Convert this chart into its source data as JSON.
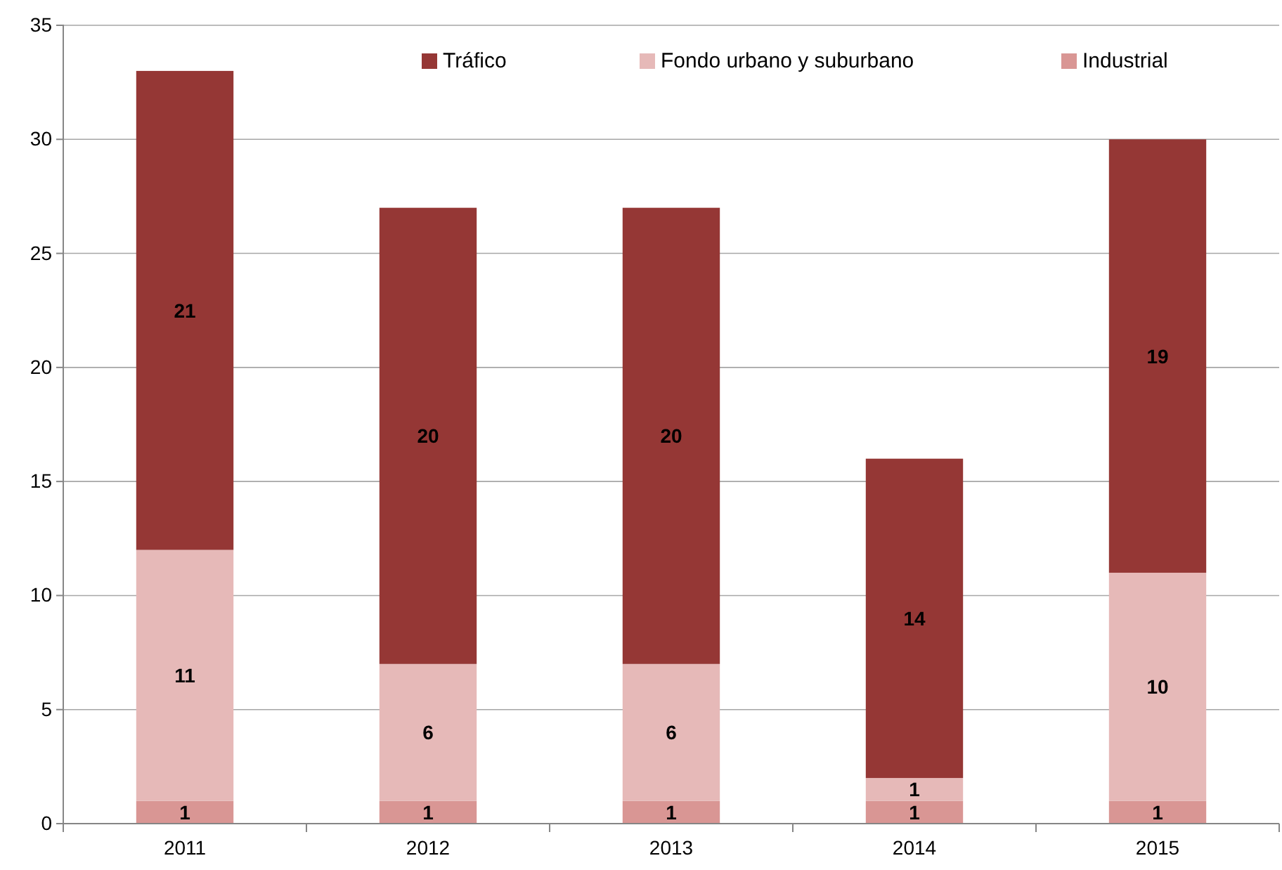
{
  "chart_data": {
    "type": "bar",
    "stacked": true,
    "categories": [
      "2011",
      "2012",
      "2013",
      "2014",
      "2015"
    ],
    "series": [
      {
        "name": "Industrial",
        "color": "#d99694",
        "values": [
          1,
          1,
          1,
          1,
          1
        ]
      },
      {
        "name": "Fondo urbano y suburbano",
        "color": "#e6b9b8",
        "values": [
          11,
          6,
          6,
          1,
          10
        ]
      },
      {
        "name": "Tráfico",
        "color": "#953735",
        "values": [
          21,
          20,
          20,
          14,
          19
        ]
      }
    ],
    "ylim": [
      0,
      35
    ],
    "yticks": [
      0,
      5,
      10,
      15,
      20,
      25,
      30,
      35
    ],
    "grid": "y",
    "legend": "top",
    "data_labels": true
  }
}
